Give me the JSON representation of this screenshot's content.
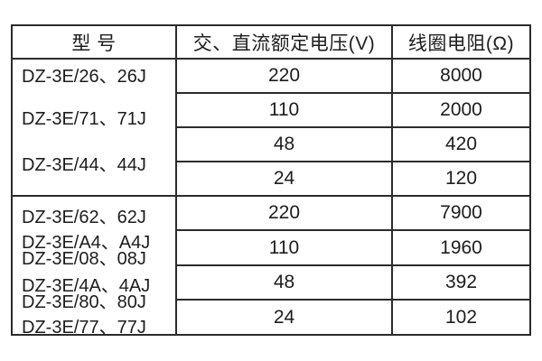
{
  "chart_data": {
    "type": "table",
    "columns": {
      "model": "型 号",
      "voltage": "交、直流额定电压(V)",
      "resistance": "线圈电阻(Ω)"
    },
    "groups": [
      {
        "models": [
          "DZ-3E/26、26J",
          "DZ-3E/71、71J",
          "DZ-3E/44、44J"
        ],
        "rows": [
          {
            "voltage": "220",
            "resistance": "8000"
          },
          {
            "voltage": "110",
            "resistance": "2000"
          },
          {
            "voltage": "48",
            "resistance": "420"
          },
          {
            "voltage": "24",
            "resistance": "120"
          }
        ]
      },
      {
        "models": [
          "DZ-3E/62、62J",
          "DZ-3E/A4、A4J",
          "DZ-3E/08、08J",
          "DZ-3E/4A、4AJ",
          "DZ-3E/80、80J",
          "DZ-3E/77、77J"
        ],
        "rows": [
          {
            "voltage": "220",
            "resistance": "7900"
          },
          {
            "voltage": "110",
            "resistance": "1960"
          },
          {
            "voltage": "48",
            "resistance": "392"
          },
          {
            "voltage": "24",
            "resistance": "102"
          }
        ]
      }
    ],
    "layout": {
      "grid": "on",
      "header_row": true,
      "merged_model_column": true
    }
  },
  "colors": {
    "border": "#2b2b2b",
    "text": "#1d1d1d",
    "background": "#ffffff"
  }
}
